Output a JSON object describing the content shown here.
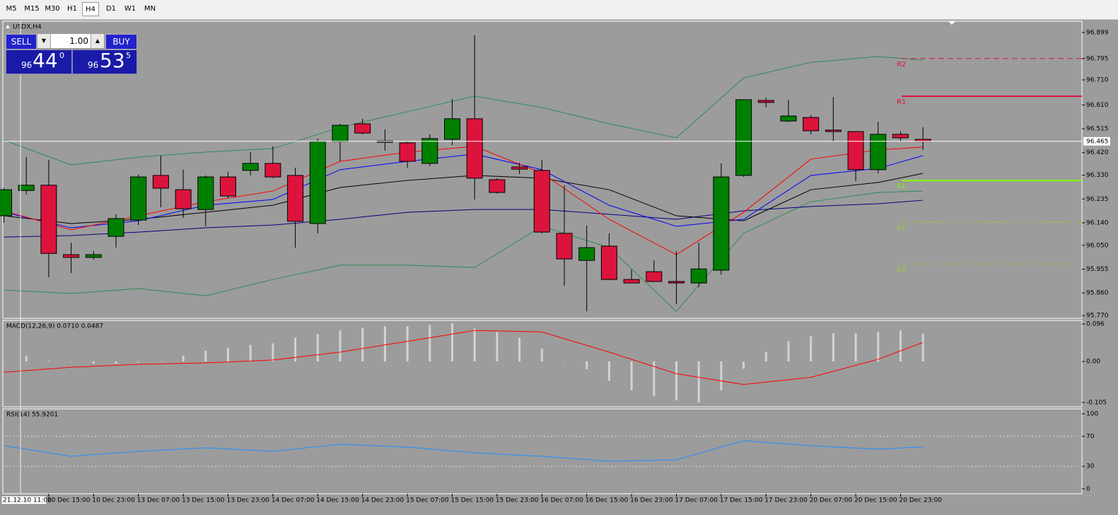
{
  "toolbar": {
    "timeframes": [
      "M5",
      "M15",
      "M30",
      "H1",
      "H4",
      "D1",
      "W1",
      "MN"
    ],
    "active": 4
  },
  "trade_panel": {
    "sell": "SELL",
    "buy": "BUY",
    "lots": "1.00",
    "bid_big": "96",
    "bid_main": "44",
    "bid_sup": "0",
    "ask_big": "96",
    "ask_main": "53",
    "ask_sup": "5"
  },
  "crosshair_label": "21.12.10 11:00",
  "categories": [
    null,
    null,
    "10 Dec 15:00",
    null,
    "10 Dec 23:00",
    null,
    "13 Dec 07:00",
    null,
    "13 Dec 15:00",
    null,
    "13 Dec 23:00",
    null,
    "14 Dec 07:00",
    null,
    "14 Dec 15:00",
    null,
    "14 Dec 23:00",
    null,
    "15 Dec 07:00",
    null,
    "15 Dec 15:00",
    null,
    "15 Dec 23:00",
    null,
    "16 Dec 07:00",
    null,
    "16 Dec 15:00",
    null,
    "16 Dec 23:00",
    null,
    "17 Dec 07:00",
    null,
    "17 Dec 15:00",
    null,
    "17 Dec 23:00",
    null,
    "20 Dec 07:00",
    null,
    "20 Dec 15:00",
    null,
    "20 Dec 23:00",
    null
  ],
  "chart_data": [
    {
      "type": "candlestick",
      "title": "USDX,H4",
      "bull_color": "#008000",
      "bear_color": "#dc143c",
      "ylim": [
        95.759,
        96.944
      ],
      "yticks": [
        96.899,
        96.795,
        {
          "value": 96.71,
          "label": "96.710"
        },
        {
          "value": 96.61,
          "label": "96.610"
        },
        96.515,
        {
          "value": 96.42,
          "label": "96.420"
        },
        {
          "value": 96.33,
          "label": "96.330"
        },
        96.235,
        {
          "value": 96.14,
          "label": "96.140"
        },
        {
          "value": 96.05,
          "label": "96.050"
        },
        95.955,
        {
          "value": 95.86,
          "label": "95.860"
        },
        {
          "value": 95.77,
          "label": "95.770"
        }
      ],
      "price": {
        "value": 96.465,
        "label": "96.465"
      },
      "open": [
        96.168,
        96.269,
        96.29,
        96.013,
        96.002,
        96.086,
        96.151,
        96.329,
        96.272,
        96.193,
        96.323,
        96.349,
        96.377,
        96.329,
        96.137,
        96.464,
        96.535,
        96.461,
        96.459,
        96.377,
        96.473,
        96.555,
        96.312,
        96.363,
        96.349,
        96.098,
        95.99,
        96.047,
        95.914,
        95.945,
        95.906,
        95.9,
        95.951,
        96.329,
        96.628,
        96.546,
        96.56,
        96.51,
        96.504,
        96.352,
        96.493,
        96.473
      ],
      "high": [
        96.28,
        96.402,
        96.391,
        96.061,
        96.027,
        96.174,
        96.332,
        96.408,
        96.352,
        96.329,
        96.343,
        96.422,
        96.445,
        96.36,
        96.476,
        96.535,
        96.555,
        96.512,
        96.464,
        96.493,
        96.634,
        96.888,
        96.318,
        96.38,
        96.391,
        96.289,
        96.129,
        96.098,
        95.954,
        95.99,
        96.027,
        96.061,
        96.377,
        96.631,
        96.639,
        96.631,
        96.569,
        96.642,
        96.504,
        96.543,
        96.504,
        96.521
      ],
      "low": [
        96.14,
        96.253,
        95.923,
        95.94,
        95.993,
        96.041,
        96.131,
        96.202,
        96.16,
        96.126,
        96.239,
        96.329,
        96.318,
        96.041,
        96.098,
        96.385,
        96.493,
        96.428,
        96.36,
        96.366,
        96.45,
        96.233,
        96.256,
        96.335,
        96.098,
        95.889,
        95.787,
        95.911,
        95.9,
        95.906,
        95.815,
        95.883,
        95.934,
        96.323,
        96.6,
        96.541,
        96.493,
        96.464,
        96.306,
        96.337,
        96.464,
        96.431
      ],
      "close": [
        96.272,
        96.29,
        96.018,
        96.002,
        96.013,
        96.157,
        96.323,
        96.278,
        96.196,
        96.323,
        96.247,
        96.377,
        96.323,
        96.146,
        96.464,
        96.529,
        96.498,
        96.467,
        96.385,
        96.476,
        96.555,
        96.318,
        96.261,
        96.354,
        96.103,
        95.996,
        96.041,
        95.914,
        95.9,
        95.906,
        95.9,
        95.956,
        96.323,
        96.631,
        96.62,
        96.566,
        96.507,
        96.504,
        96.352,
        96.493,
        96.479,
        96.465
      ],
      "series": [
        {
          "color": "#2e8b57",
          "x": [
            0,
            3,
            6,
            9,
            12,
            15,
            18,
            21,
            24,
            27,
            30,
            33,
            36,
            39,
            41
          ],
          "values": [
            96.47,
            96.371,
            96.402,
            96.422,
            96.436,
            96.521,
            96.583,
            96.645,
            96.6,
            96.535,
            96.479,
            96.718,
            96.78,
            96.803,
            96.789
          ]
        },
        {
          "color": "#2e8b57",
          "x": [
            0,
            3,
            6,
            9,
            12,
            15,
            18,
            21,
            24,
            27,
            30,
            33,
            36,
            39,
            41
          ],
          "values": [
            95.872,
            95.858,
            95.878,
            95.849,
            95.914,
            95.971,
            95.971,
            95.962,
            96.126,
            96.041,
            95.787,
            96.098,
            96.224,
            96.261,
            96.267
          ]
        },
        {
          "color": "#000080",
          "x": [
            0,
            3,
            6,
            9,
            12,
            15,
            18,
            21,
            24,
            27,
            30,
            33,
            36,
            39,
            41
          ],
          "values": [
            96.083,
            96.089,
            96.103,
            96.12,
            96.131,
            96.154,
            96.182,
            96.193,
            96.193,
            96.174,
            96.154,
            96.188,
            96.205,
            96.216,
            96.23
          ]
        },
        {
          "color": "#000000",
          "x": [
            0,
            3,
            6,
            9,
            12,
            15,
            18,
            21,
            24,
            27,
            30,
            33,
            36,
            39,
            41
          ],
          "values": [
            96.168,
            96.137,
            96.154,
            96.182,
            96.21,
            96.281,
            96.309,
            96.329,
            96.318,
            96.272,
            96.168,
            96.148,
            96.272,
            96.301,
            96.337
          ]
        },
        {
          "color": "#0000ff",
          "x": [
            0,
            3,
            6,
            9,
            12,
            15,
            18,
            21,
            24,
            27,
            30,
            33,
            36,
            39,
            41
          ],
          "values": [
            96.182,
            96.12,
            96.148,
            96.21,
            96.233,
            96.352,
            96.385,
            96.414,
            96.352,
            96.21,
            96.126,
            96.154,
            96.329,
            96.357,
            96.408
          ]
        },
        {
          "color": "#ff0000",
          "x": [
            0,
            3,
            6,
            9,
            12,
            15,
            18,
            21,
            24,
            27,
            30,
            33,
            36,
            39,
            41
          ],
          "values": [
            96.188,
            96.112,
            96.168,
            96.224,
            96.267,
            96.385,
            96.422,
            96.445,
            96.338,
            96.154,
            96.013,
            96.182,
            96.394,
            96.431,
            96.442
          ]
        }
      ],
      "levels": [
        {
          "name": "R2",
          "value": 96.795,
          "color": "#dc143c",
          "style": "dashed"
        },
        {
          "name": "R1",
          "value": 96.645,
          "color": "#dc143c",
          "style": "solid"
        },
        {
          "name": "S1",
          "value": 96.309,
          "color": "#7cfc00",
          "style": "solid"
        },
        {
          "name": "S2",
          "value": 96.143,
          "color": "#9acd32",
          "style": "dashed"
        },
        {
          "name": "S3",
          "value": 95.976,
          "color": "#9acd32",
          "style": "dotted"
        }
      ]
    },
    {
      "type": "bar",
      "title": "MACD(12,26,9) 0.0710 0.0487",
      "color": "#d3d3d3",
      "ylim": [
        -0.116,
        0.105
      ],
      "yticks": [
        0.096,
        {
          "value": 0,
          "label": "0.00"
        },
        -0.105
      ],
      "values": [
        0,
        0.0148,
        0.0018,
        0,
        -0.0055,
        -0.0055,
        -0.0018,
        0,
        0.0148,
        0.0277,
        0.035,
        0.0424,
        0.0461,
        0.0609,
        0.0701,
        0.0793,
        0.0867,
        0.0904,
        0.0904,
        0.094,
        0.0977,
        0.0848,
        0.0756,
        0.0609,
        0.0332,
        0,
        -0.0203,
        -0.0498,
        -0.0738,
        -0.0885,
        -0.0996,
        -0.1051,
        -0.0738,
        -0.0184,
        0.024,
        0.0516,
        0.0645,
        0.0719,
        0.0719,
        0.0756,
        0.0793,
        0.071
      ],
      "series": [
        {
          "color": "#ff0000",
          "x": [
            0,
            3,
            6,
            9,
            12,
            15,
            18,
            21,
            24,
            27,
            30,
            33,
            36,
            39,
            41
          ],
          "values": [
            -0.0277,
            -0.0148,
            -0.0074,
            -0.0037,
            0.0037,
            0.024,
            0.0516,
            0.0793,
            0.0756,
            0.024,
            -0.0313,
            -0.059,
            -0.0406,
            0.0055,
            0.0487
          ]
        }
      ]
    },
    {
      "type": "line",
      "title": "RSI(14) 55.9201",
      "ylim": [
        -6.6,
        106.6
      ],
      "yticks": [
        100,
        70,
        30,
        0
      ],
      "levels": [
        70,
        30
      ],
      "series": [
        {
          "color": "#1e90ff",
          "x": [
            0,
            3,
            6,
            9,
            12,
            15,
            18,
            21,
            24,
            27,
            30,
            33,
            36,
            39,
            41
          ],
          "values": [
            57.5,
            43.4,
            50,
            54.7,
            50,
            59.4,
            55.7,
            48.1,
            43.4,
            36.8,
            38.7,
            64.2,
            57.5,
            52.8,
            55.9201
          ]
        }
      ]
    }
  ]
}
